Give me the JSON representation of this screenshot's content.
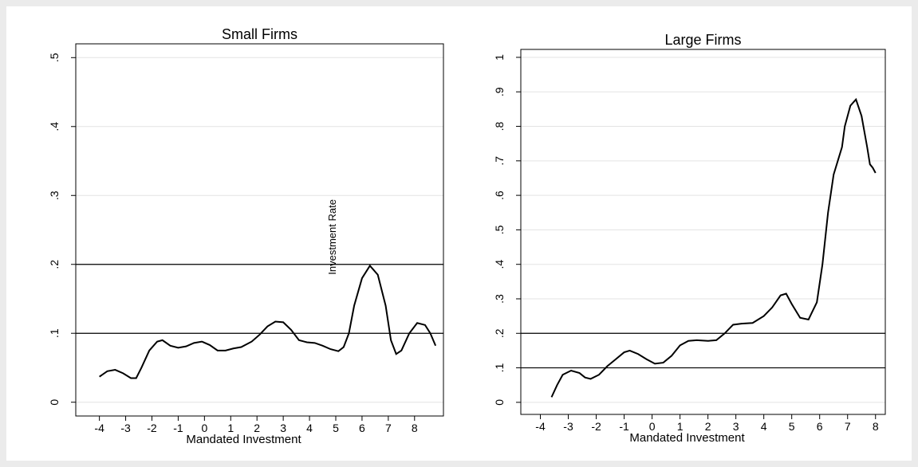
{
  "chart_data": [
    {
      "type": "line",
      "title": "Small Firms",
      "x_label": "Mandated Investment",
      "color": "#000000",
      "grid": true,
      "reference_lines": [
        0.1,
        0.2
      ],
      "annotations": [
        {
          "text": "Investment Rate",
          "x": 5,
          "y": 0.185
        }
      ],
      "xlim": [
        -4.9,
        9.1
      ],
      "xticks": [
        -4,
        -3,
        -2,
        -1,
        0,
        1,
        2,
        3,
        4,
        5,
        6,
        7,
        8
      ],
      "ylim": [
        -0.02,
        0.52
      ],
      "yticks": [
        0,
        {
          "value": 0.1,
          "label": ".1"
        },
        {
          "value": 0.2,
          "label": ".2"
        },
        {
          "value": 0.3,
          "label": ".3"
        },
        {
          "value": 0.4,
          "label": ".4"
        },
        {
          "value": 0.5,
          "label": ".5"
        }
      ],
      "x": [
        -4,
        -3.7,
        -3.4,
        -3.1,
        -2.8,
        -2.6,
        -2.4,
        -2.1,
        -1.8,
        -1.6,
        -1.3,
        -1,
        -0.7,
        -0.4,
        -0.1,
        0.2,
        0.5,
        0.8,
        1.1,
        1.4,
        1.8,
        2.1,
        2.4,
        2.7,
        3,
        3.3,
        3.6,
        3.9,
        4.2,
        4.5,
        4.8,
        5.1,
        5.3,
        5.5,
        5.7,
        6,
        6.3,
        6.6,
        6.9,
        7.1,
        7.3,
        7.5,
        7.8,
        8.1,
        8.4,
        8.6,
        8.8
      ],
      "values": [
        0.037,
        0.045,
        0.047,
        0.042,
        0.035,
        0.035,
        0.05,
        0.075,
        0.088,
        0.09,
        0.082,
        0.079,
        0.081,
        0.086,
        0.088,
        0.083,
        0.075,
        0.075,
        0.078,
        0.08,
        0.088,
        0.098,
        0.11,
        0.117,
        0.116,
        0.105,
        0.09,
        0.087,
        0.086,
        0.082,
        0.077,
        0.074,
        0.08,
        0.1,
        0.14,
        0.18,
        0.198,
        0.185,
        0.14,
        0.09,
        0.07,
        0.075,
        0.1,
        0.115,
        0.112,
        0.1,
        0.082
      ]
    },
    {
      "type": "line",
      "title": "Large Firms",
      "x_label": "Mandated Investment",
      "color": "#000000",
      "grid": true,
      "reference_lines": [
        0.1,
        0.2
      ],
      "xlim": [
        -4.7,
        8.35
      ],
      "xticks": [
        -4,
        -3,
        -2,
        -1,
        0,
        1,
        2,
        3,
        4,
        5,
        6,
        7,
        8
      ],
      "ylim": [
        -0.035,
        1.023
      ],
      "yticks": [
        0,
        {
          "value": 0.1,
          "label": ".1"
        },
        {
          "value": 0.2,
          "label": ".2"
        },
        {
          "value": 0.3,
          "label": ".3"
        },
        {
          "value": 0.4,
          "label": ".4"
        },
        {
          "value": 0.5,
          "label": ".5"
        },
        {
          "value": 0.6,
          "label": ".6"
        },
        {
          "value": 0.7,
          "label": ".7"
        },
        {
          "value": 0.8,
          "label": ".8"
        },
        {
          "value": 0.9,
          "label": ".9"
        },
        1
      ],
      "x": [
        -3.6,
        -3.4,
        -3.2,
        -2.9,
        -2.6,
        -2.4,
        -2.2,
        -1.9,
        -1.6,
        -1.3,
        -1,
        -0.8,
        -0.5,
        -0.2,
        0.1,
        0.4,
        0.7,
        1,
        1.3,
        1.6,
        2,
        2.3,
        2.6,
        2.9,
        3.2,
        3.6,
        4,
        4.3,
        4.6,
        4.8,
        5,
        5.3,
        5.6,
        5.9,
        6.1,
        6.3,
        6.5,
        6.8,
        6.9,
        7.1,
        7.3,
        7.5,
        7.7,
        7.8,
        7.9,
        8
      ],
      "values": [
        0.015,
        0.05,
        0.08,
        0.092,
        0.085,
        0.072,
        0.068,
        0.08,
        0.105,
        0.125,
        0.145,
        0.15,
        0.14,
        0.125,
        0.112,
        0.115,
        0.135,
        0.165,
        0.178,
        0.18,
        0.178,
        0.18,
        0.2,
        0.225,
        0.228,
        0.23,
        0.25,
        0.275,
        0.31,
        0.315,
        0.285,
        0.245,
        0.24,
        0.29,
        0.4,
        0.55,
        0.66,
        0.74,
        0.8,
        0.86,
        0.878,
        0.83,
        0.74,
        0.69,
        0.68,
        0.665
      ]
    }
  ]
}
